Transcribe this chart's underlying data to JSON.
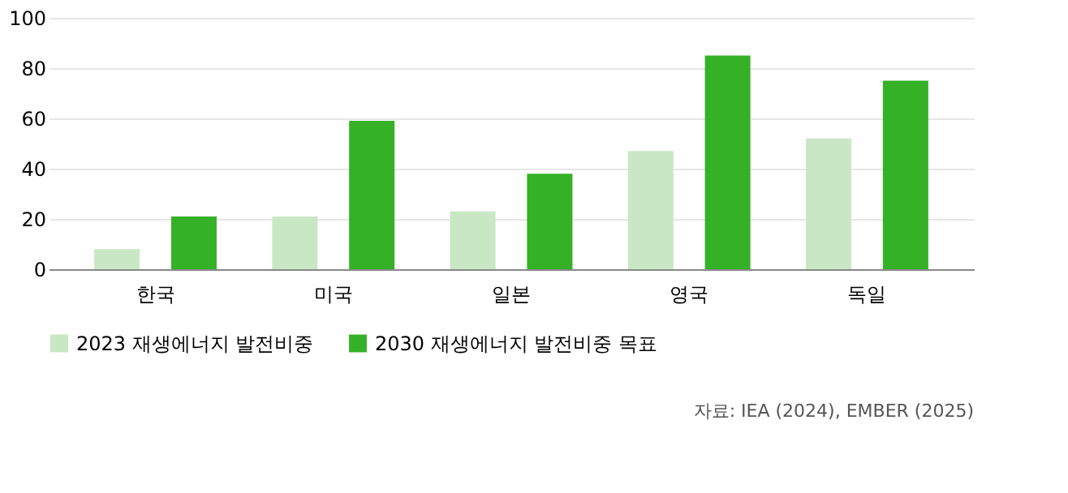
{
  "chart_data": {
    "type": "bar",
    "categories": [
      "한국",
      "미국",
      "일본",
      "영국",
      "독일"
    ],
    "series": [
      {
        "name": "2023 재생에너지 발전비중",
        "color": "#c9e7c4",
        "values": [
          8,
          21,
          23,
          47,
          52
        ]
      },
      {
        "name": "2030 재생에너지 발전비중 목표",
        "color": "#34b127",
        "values": [
          21,
          59,
          38,
          85,
          75
        ]
      }
    ],
    "ylim": [
      0,
      100
    ],
    "yticks": [
      0,
      20,
      40,
      60,
      80,
      100
    ],
    "grid": "y",
    "legend": "bottom",
    "annotations": [
      "자료: IEA (2024), EMBER (2025)"
    ]
  }
}
